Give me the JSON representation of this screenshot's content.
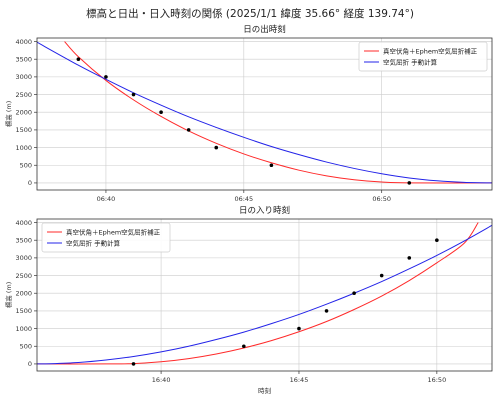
{
  "title": "標高と日出・日入時刻の関係 (2025/1/1 緯度 35.66° 経度 139.74°)",
  "chart_data": [
    {
      "type": "line",
      "title": "日の出時刻",
      "xlabel": "",
      "ylabel": "標高 (m)",
      "xlim": [
        "06:37:30",
        "06:54:00"
      ],
      "ylim": [
        -200,
        4100
      ],
      "yticks": [
        0,
        500,
        1000,
        1500,
        2000,
        2500,
        3000,
        3500,
        4000
      ],
      "xticks": [
        "06:40",
        "06:45",
        "06:50"
      ],
      "grid": true,
      "legend": "top-right",
      "series": [
        {
          "name": "真空伏角＋Ephem空気屈折補正",
          "color": "#ff2a2a",
          "style": "line",
          "points": [
            [
              "06:38:30",
              4000
            ],
            [
              "06:39:00",
              3570
            ],
            [
              "06:40:00",
              2900
            ],
            [
              "06:41:00",
              2350
            ],
            [
              "06:42:00",
              1880
            ],
            [
              "06:43:00",
              1470
            ],
            [
              "06:44:00",
              1120
            ],
            [
              "06:45:00",
              820
            ],
            [
              "06:46:00",
              570
            ],
            [
              "06:47:00",
              360
            ],
            [
              "06:48:00",
              200
            ],
            [
              "06:49:00",
              90
            ],
            [
              "06:50:00",
              25
            ],
            [
              "06:51:00",
              0
            ],
            [
              "06:54:00",
              0
            ]
          ]
        },
        {
          "name": "空気屈折 手動計算",
          "color": "#2323e8",
          "style": "line",
          "points": [
            [
              "06:37:30",
              3980
            ],
            [
              "06:39:00",
              3330
            ],
            [
              "06:40:00",
              2930
            ],
            [
              "06:41:00",
              2550
            ],
            [
              "06:42:00",
              2200
            ],
            [
              "06:43:00",
              1870
            ],
            [
              "06:44:00",
              1570
            ],
            [
              "06:45:00",
              1290
            ],
            [
              "06:46:00",
              1030
            ],
            [
              "06:47:00",
              800
            ],
            [
              "06:48:00",
              590
            ],
            [
              "06:49:00",
              410
            ],
            [
              "06:50:00",
              260
            ],
            [
              "06:51:00",
              140
            ],
            [
              "06:52:00",
              60
            ],
            [
              "06:53:00",
              15
            ],
            [
              "06:54:00",
              0
            ]
          ]
        },
        {
          "name": "",
          "color": "#000000",
          "style": "scatter",
          "points": [
            [
              "06:39:00",
              3500
            ],
            [
              "06:40:00",
              3000
            ],
            [
              "06:41:00",
              2500
            ],
            [
              "06:42:00",
              2000
            ],
            [
              "06:43:00",
              1500
            ],
            [
              "06:44:00",
              1000
            ],
            [
              "06:46:00",
              500
            ],
            [
              "06:51:00",
              0
            ]
          ]
        }
      ]
    },
    {
      "type": "line",
      "title": "日の入り時刻",
      "xlabel": "時刻",
      "ylabel": "標高 (m)",
      "xlim": [
        "16:35:30",
        "16:52:00"
      ],
      "ylim": [
        -200,
        4100
      ],
      "yticks": [
        0,
        500,
        1000,
        1500,
        2000,
        2500,
        3000,
        3500,
        4000
      ],
      "xticks": [
        "16:40",
        "16:45",
        "16:50"
      ],
      "grid": true,
      "legend": "top-left",
      "series": [
        {
          "name": "真空伏角＋Ephem空気屈折補正",
          "color": "#ff2a2a",
          "style": "line",
          "points": [
            [
              "16:35:30",
              0
            ],
            [
              "16:38:00",
              0
            ],
            [
              "16:39:00",
              10
            ],
            [
              "16:40:00",
              60
            ],
            [
              "16:41:00",
              150
            ],
            [
              "16:42:00",
              280
            ],
            [
              "16:43:00",
              450
            ],
            [
              "16:44:00",
              660
            ],
            [
              "16:45:00",
              910
            ],
            [
              "16:46:00",
              1200
            ],
            [
              "16:47:00",
              1540
            ],
            [
              "16:48:00",
              1920
            ],
            [
              "16:49:00",
              2360
            ],
            [
              "16:50:00",
              2860
            ],
            [
              "16:51:00",
              3420
            ],
            [
              "16:51:30",
              4000
            ]
          ]
        },
        {
          "name": "空気屈折 手動計算",
          "color": "#2323e8",
          "style": "line",
          "points": [
            [
              "16:35:30",
              0
            ],
            [
              "16:36:00",
              5
            ],
            [
              "16:37:00",
              40
            ],
            [
              "16:38:00",
              110
            ],
            [
              "16:39:00",
              210
            ],
            [
              "16:40:00",
              340
            ],
            [
              "16:41:00",
              500
            ],
            [
              "16:42:00",
              690
            ],
            [
              "16:43:00",
              900
            ],
            [
              "16:44:00",
              1140
            ],
            [
              "16:45:00",
              1400
            ],
            [
              "16:46:00",
              1690
            ],
            [
              "16:47:00",
              2000
            ],
            [
              "16:48:00",
              2330
            ],
            [
              "16:49:00",
              2690
            ],
            [
              "16:50:00",
              3070
            ],
            [
              "16:51:00",
              3480
            ],
            [
              "16:52:00",
              3920
            ]
          ]
        },
        {
          "name": "",
          "color": "#000000",
          "style": "scatter",
          "points": [
            [
              "16:39:00",
              0
            ],
            [
              "16:43:00",
              500
            ],
            [
              "16:45:00",
              1000
            ],
            [
              "16:46:00",
              1500
            ],
            [
              "16:47:00",
              2000
            ],
            [
              "16:48:00",
              2500
            ],
            [
              "16:49:00",
              3000
            ],
            [
              "16:50:00",
              3500
            ]
          ]
        }
      ]
    }
  ]
}
